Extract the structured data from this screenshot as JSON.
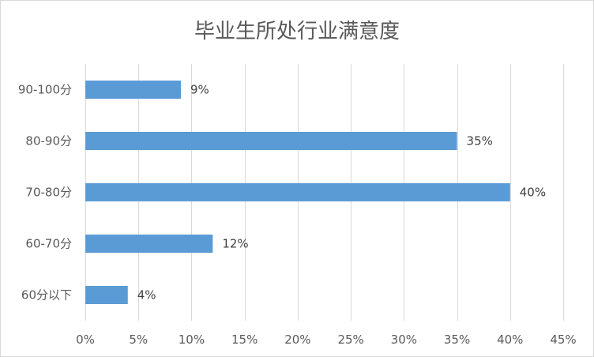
{
  "chart_data": {
    "type": "bar",
    "orientation": "horizontal",
    "title": "毕业生所处行业满意度",
    "categories": [
      "90-100分",
      "80-90分",
      "70-80分",
      "60-70分",
      "60分以下"
    ],
    "values": [
      9,
      35,
      40,
      12,
      4
    ],
    "data_labels": [
      "9%",
      "35%",
      "40%",
      "12%",
      "4%"
    ],
    "xlim": [
      0,
      45
    ],
    "x_ticks": [
      0,
      5,
      10,
      15,
      20,
      25,
      30,
      35,
      40,
      45
    ],
    "x_tick_labels": [
      "0%",
      "5%",
      "10%",
      "15%",
      "20%",
      "25%",
      "30%",
      "35%",
      "40%",
      "45%"
    ],
    "xlabel": "",
    "ylabel": "",
    "grid": true,
    "legend": "none",
    "bar_color": "#5b9bd5"
  }
}
